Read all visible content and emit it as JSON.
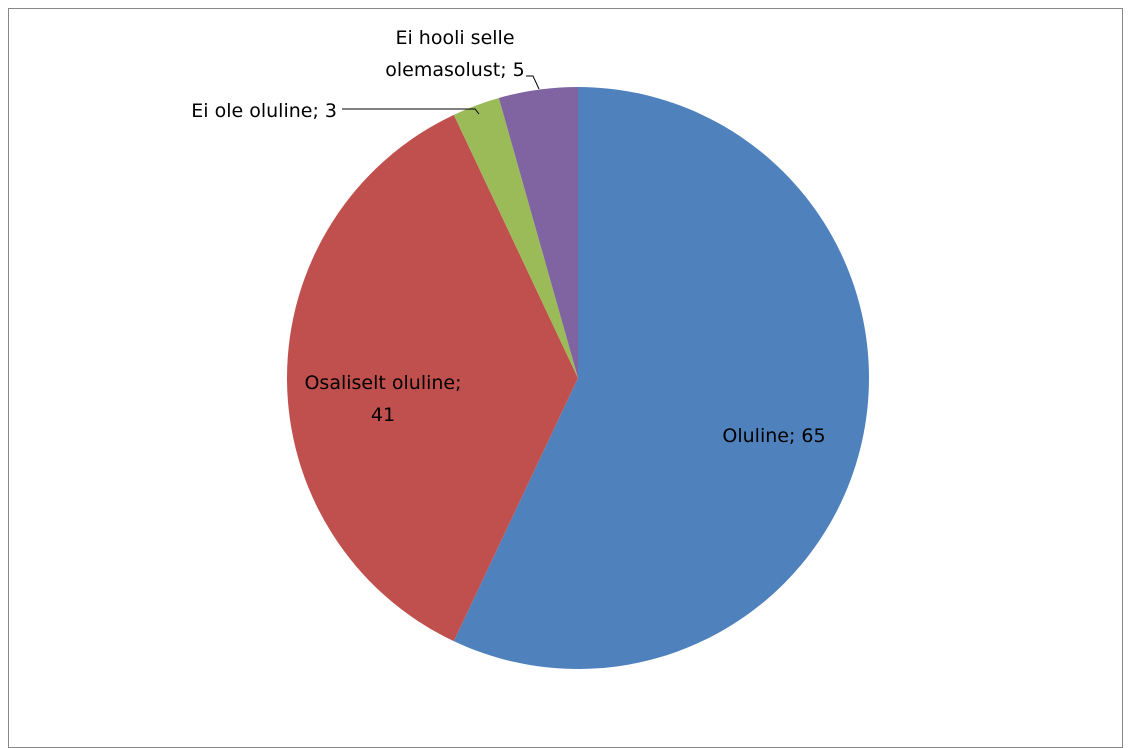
{
  "chart_data": {
    "type": "pie",
    "start_angle_deg": 0,
    "direction": "clockwise",
    "slices": [
      {
        "label": "Oluline",
        "value": 65,
        "color": "#4F81BD",
        "text_lines": [
          "Oluline; 65"
        ]
      },
      {
        "label": "Osaliselt oluline",
        "value": 41,
        "color": "#C0504D",
        "text_lines": [
          "Osaliselt oluline;",
          "41"
        ]
      },
      {
        "label": "Ei ole oluline",
        "value": 3,
        "color": "#9BBB59",
        "text_lines": [
          "Ei ole oluline; 3"
        ]
      },
      {
        "label": "Ei hooli selle olemasolust",
        "value": 5,
        "color": "#8064A2",
        "text_lines": [
          "Ei hooli selle",
          "olemasolust; 5"
        ]
      }
    ],
    "legend": "none",
    "title": ""
  }
}
